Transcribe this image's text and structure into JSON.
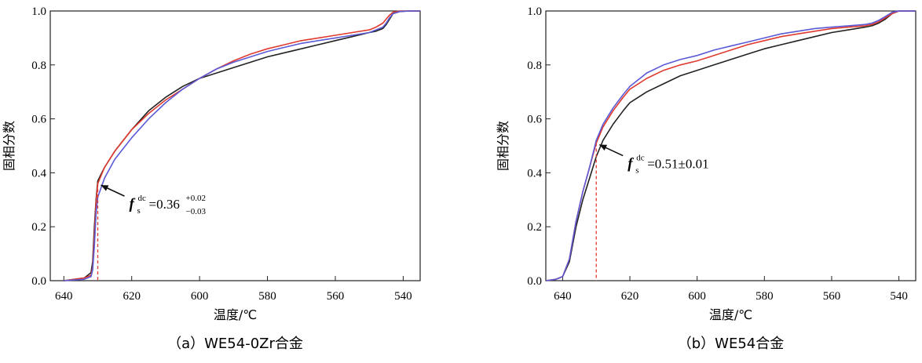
{
  "chart_data": [
    {
      "type": "line",
      "caption": "（a）WE54-0Zr合金",
      "xlabel": "温度/℃",
      "ylabel": "固相分数",
      "xlim": [
        644,
        535
      ],
      "ylim": [
        0,
        1.0
      ],
      "x_ticks": [
        "640",
        "620",
        "600",
        "580",
        "560",
        "540"
      ],
      "y_ticks": [
        "0.0",
        "0.2",
        "0.4",
        "0.6",
        "0.8",
        "1.0"
      ],
      "grid": false,
      "series": [
        {
          "color": "#222222",
          "x": [
            640,
            634,
            632,
            631.5,
            631,
            630.5,
            630,
            628,
            625,
            620,
            615,
            610,
            605,
            600,
            595,
            590,
            585,
            580,
            575,
            570,
            565,
            560,
            555,
            550,
            548,
            546,
            545,
            544,
            543,
            541,
            538,
            535
          ],
          "y": [
            0,
            0.01,
            0.03,
            0.07,
            0.2,
            0.3,
            0.37,
            0.42,
            0.48,
            0.56,
            0.63,
            0.68,
            0.72,
            0.75,
            0.77,
            0.79,
            0.81,
            0.83,
            0.845,
            0.86,
            0.875,
            0.89,
            0.905,
            0.92,
            0.925,
            0.935,
            0.95,
            0.97,
            0.99,
            0.998,
            1.0,
            1.0
          ]
        },
        {
          "color": "#e03a2f",
          "x": [
            640,
            634,
            632,
            631.5,
            631,
            630.5,
            630,
            628,
            625,
            620,
            615,
            610,
            605,
            600,
            595,
            590,
            585,
            580,
            575,
            570,
            565,
            560,
            555,
            550,
            548,
            546,
            545,
            544,
            543,
            541,
            538,
            535
          ],
          "y": [
            0,
            0.01,
            0.02,
            0.05,
            0.17,
            0.29,
            0.36,
            0.42,
            0.48,
            0.56,
            0.62,
            0.67,
            0.71,
            0.75,
            0.785,
            0.815,
            0.84,
            0.86,
            0.875,
            0.89,
            0.9,
            0.91,
            0.92,
            0.93,
            0.94,
            0.955,
            0.97,
            0.985,
            0.995,
            1.0,
            1.0,
            1.0
          ]
        },
        {
          "color": "#5a5ad6",
          "x": [
            640,
            634,
            632,
            631.5,
            631,
            630.5,
            630,
            628,
            625,
            620,
            615,
            610,
            605,
            600,
            595,
            590,
            585,
            580,
            575,
            570,
            565,
            560,
            555,
            550,
            548,
            546,
            545,
            544,
            543,
            541,
            538,
            535
          ],
          "y": [
            0,
            0.005,
            0.015,
            0.04,
            0.13,
            0.25,
            0.31,
            0.38,
            0.45,
            0.53,
            0.6,
            0.66,
            0.71,
            0.75,
            0.785,
            0.81,
            0.83,
            0.85,
            0.865,
            0.88,
            0.89,
            0.9,
            0.91,
            0.92,
            0.93,
            0.94,
            0.955,
            0.975,
            0.99,
            0.998,
            1.0,
            1.0
          ]
        }
      ],
      "annotation": {
        "x": 630,
        "y": 0.36,
        "symbol": "f",
        "subscript": "s",
        "superscript": "dc",
        "text": "=0.36",
        "sup_err": "+0.02",
        "sub_err": "−0.03"
      }
    },
    {
      "type": "line",
      "caption": "（b）WE54合金",
      "xlabel": "温度/℃",
      "ylabel": "固相分数",
      "xlim": [
        645,
        535
      ],
      "ylim": [
        0,
        1.0
      ],
      "x_ticks": [
        "640",
        "620",
        "600",
        "580",
        "560",
        "540"
      ],
      "y_ticks": [
        "0.0",
        "0.2",
        "0.4",
        "0.6",
        "0.8",
        "1.0"
      ],
      "grid": false,
      "series": [
        {
          "color": "#222222",
          "x": [
            645,
            642,
            640,
            638,
            636,
            634,
            632,
            630,
            628,
            625,
            622,
            620,
            615,
            610,
            605,
            600,
            595,
            590,
            585,
            580,
            575,
            570,
            565,
            560,
            555,
            550,
            548,
            546,
            544,
            542,
            540,
            535
          ],
          "y": [
            0,
            0.005,
            0.015,
            0.07,
            0.2,
            0.3,
            0.38,
            0.46,
            0.52,
            0.58,
            0.63,
            0.66,
            0.7,
            0.73,
            0.76,
            0.78,
            0.8,
            0.82,
            0.84,
            0.86,
            0.875,
            0.89,
            0.905,
            0.92,
            0.93,
            0.94,
            0.945,
            0.955,
            0.97,
            0.99,
            1.0,
            1.0
          ]
        },
        {
          "color": "#e03a2f",
          "x": [
            645,
            642,
            640,
            638,
            636,
            634,
            632,
            630,
            628,
            625,
            622,
            620,
            615,
            610,
            605,
            600,
            595,
            590,
            585,
            580,
            575,
            570,
            565,
            560,
            555,
            550,
            548,
            546,
            544,
            542,
            540,
            535
          ],
          "y": [
            0,
            0.005,
            0.015,
            0.08,
            0.22,
            0.33,
            0.42,
            0.51,
            0.57,
            0.63,
            0.68,
            0.71,
            0.75,
            0.78,
            0.8,
            0.815,
            0.835,
            0.855,
            0.875,
            0.89,
            0.905,
            0.915,
            0.925,
            0.935,
            0.94,
            0.945,
            0.95,
            0.96,
            0.975,
            0.99,
            1.0,
            1.0
          ]
        },
        {
          "color": "#5a5ad6",
          "x": [
            645,
            642,
            640,
            638,
            636,
            634,
            632,
            630,
            628,
            625,
            622,
            620,
            615,
            610,
            605,
            600,
            595,
            590,
            585,
            580,
            575,
            570,
            565,
            560,
            555,
            550,
            548,
            546,
            544,
            542,
            540,
            535
          ],
          "y": [
            0,
            0.005,
            0.015,
            0.08,
            0.22,
            0.33,
            0.42,
            0.52,
            0.58,
            0.64,
            0.69,
            0.72,
            0.77,
            0.8,
            0.82,
            0.835,
            0.855,
            0.87,
            0.885,
            0.9,
            0.915,
            0.925,
            0.935,
            0.94,
            0.945,
            0.95,
            0.955,
            0.965,
            0.98,
            0.995,
            1.0,
            1.0
          ]
        }
      ],
      "annotation": {
        "x": 630,
        "y": 0.51,
        "symbol": "f",
        "subscript": "s",
        "superscript": "dc",
        "text": "=0.51±0.01"
      }
    }
  ]
}
